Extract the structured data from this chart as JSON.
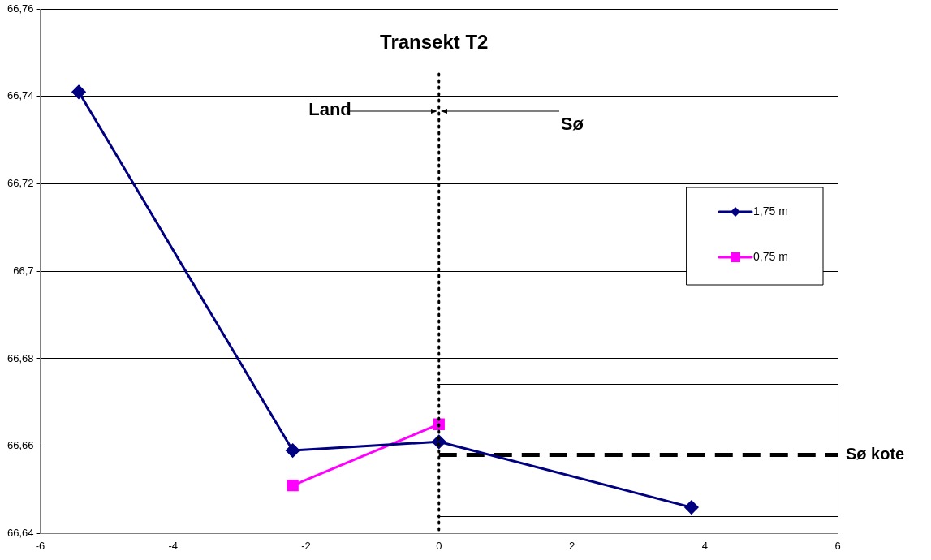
{
  "chart_data": {
    "type": "line",
    "xlim": [
      -6,
      6
    ],
    "xticks": [
      -6,
      -4,
      -2,
      0,
      2,
      4,
      6
    ],
    "ylim": [
      66.64,
      66.76
    ],
    "yticks": [
      {
        "value": 66.64,
        "label": "66,64"
      },
      {
        "value": 66.66,
        "label": "66,66"
      },
      {
        "value": 66.68,
        "label": "66,68"
      },
      {
        "value": 66.7,
        "label": "66,7"
      },
      {
        "value": 66.72,
        "label": "66,72"
      },
      {
        "value": 66.74,
        "label": "66,74"
      },
      {
        "value": 66.76,
        "label": "66,76"
      }
    ],
    "grid": "y",
    "legend": "right",
    "series": [
      {
        "name": "1,75 m",
        "color": "#000080",
        "marker": "diamond",
        "x": [
          -5.42,
          -2.2,
          0,
          3.8
        ],
        "values": [
          66.741,
          66.659,
          66.661,
          66.646
        ]
      },
      {
        "name": "0,75 m",
        "color": "#ff00ff",
        "marker": "square",
        "x": [
          -2.2,
          0
        ],
        "values": [
          66.651,
          66.665
        ]
      },
      {
        "name": "Sø kote",
        "color": "#000000",
        "marker": "none",
        "line_style": "dashed",
        "x": [
          0,
          6
        ],
        "values": [
          66.658,
          66.658
        ]
      }
    ],
    "ref_lines": [
      {
        "axis": "x",
        "value": 0,
        "label": "Transekt T2",
        "color": "#000000",
        "line_style": "dotted"
      }
    ],
    "annotations": [
      "Land",
      "Sø"
    ]
  }
}
